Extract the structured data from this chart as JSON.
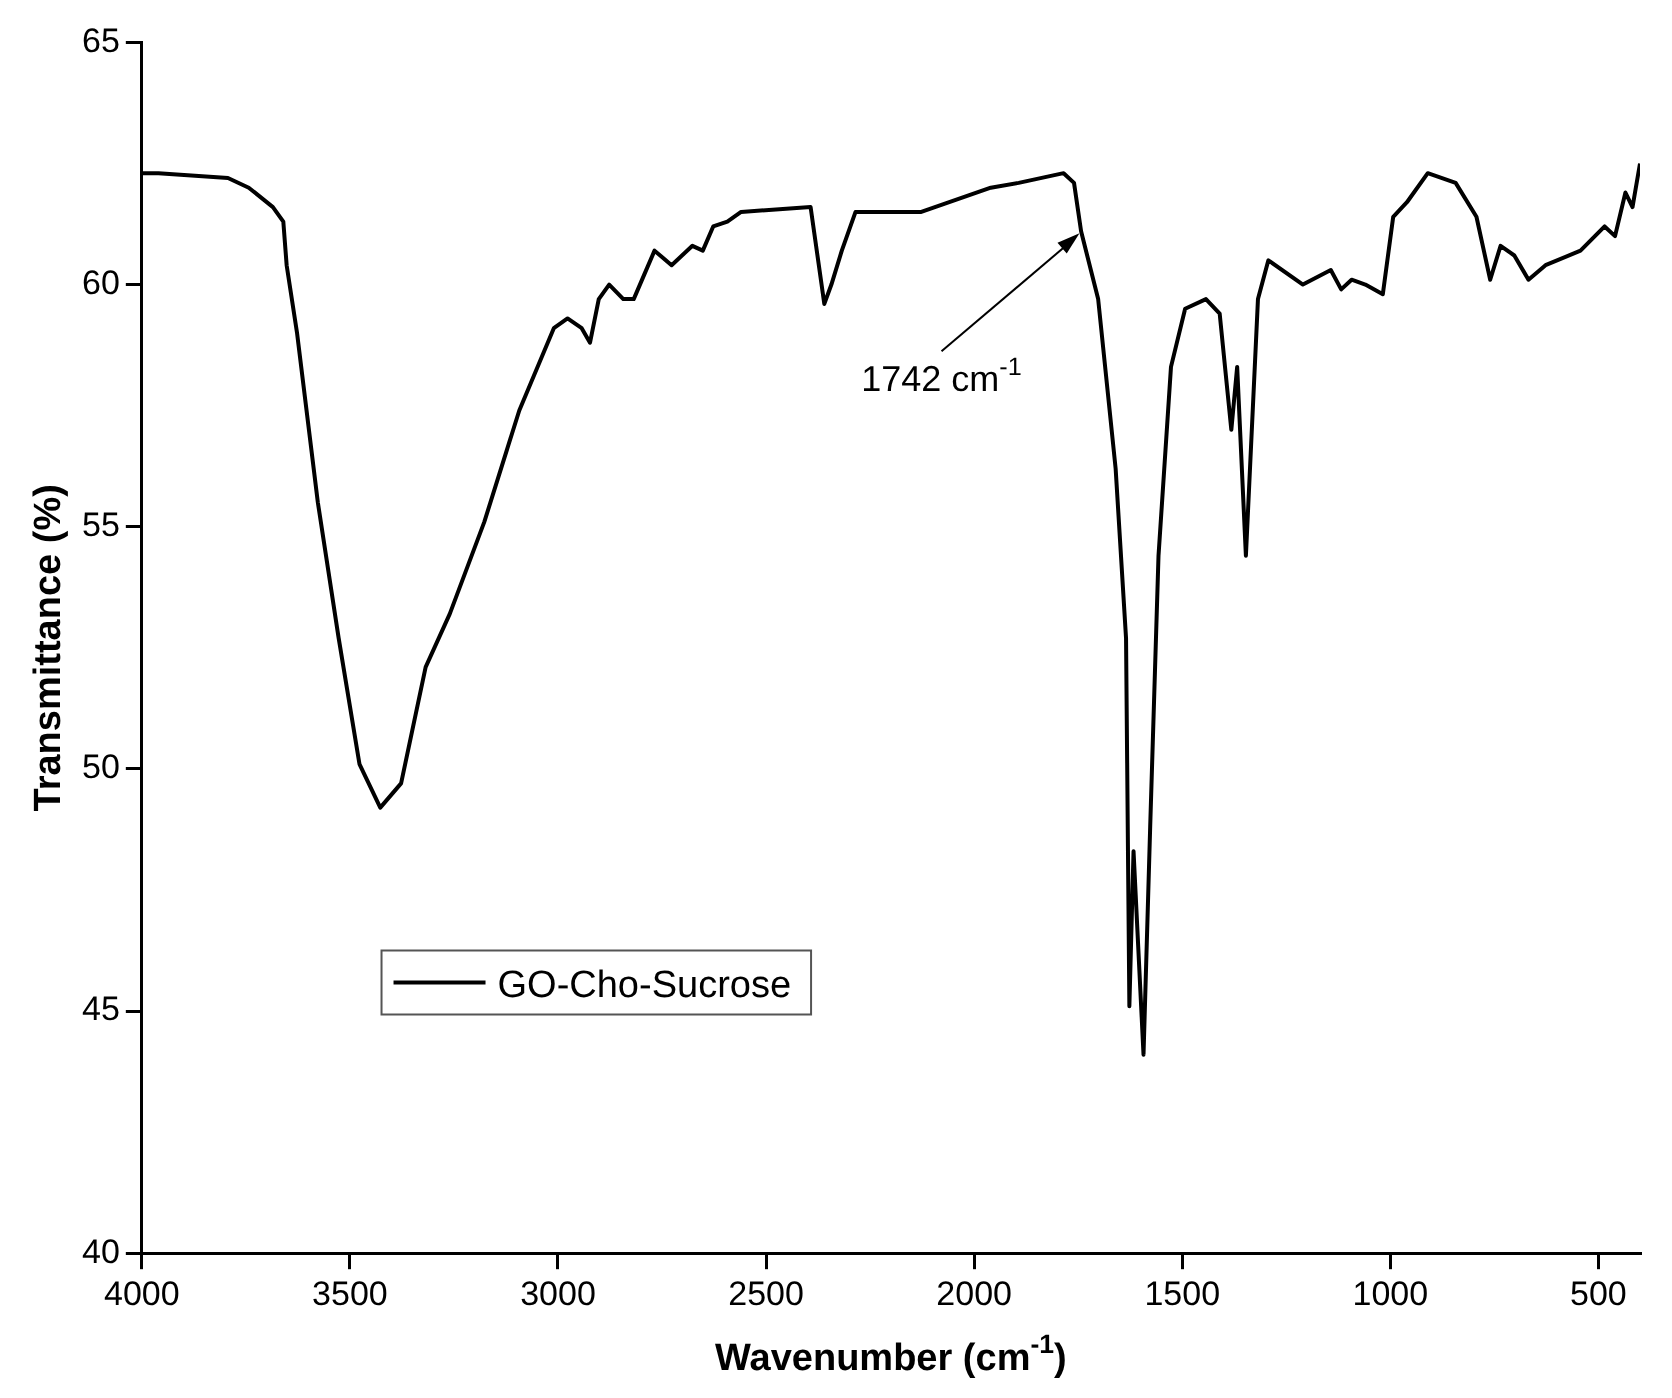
{
  "chart_data": {
    "type": "line",
    "xlabel": "Wavenumber (cm$^{-1}$)",
    "ylabel": "Transmittance (%)",
    "xlim": [
      4000,
      400
    ],
    "ylim": [
      40,
      65
    ],
    "xticks": [
      4000,
      3500,
      3000,
      2500,
      2000,
      1500,
      1000,
      500
    ],
    "yticks": [
      40,
      45,
      50,
      55,
      60,
      65
    ],
    "grid": false,
    "legend": "left",
    "marker": "none",
    "line_style": "solid",
    "annotations": [
      {
        "text": "1742 cm$^{-1}$",
        "x": 1742,
        "y": 61.1
      }
    ],
    "series": [
      {
        "name": "GO-Cho-Sucrose",
        "color": "#000000",
        "x": [
          4000,
          3960,
          3793,
          3743,
          3685,
          3660,
          3652,
          3627,
          3577,
          3527,
          3477,
          3427,
          3377,
          3318,
          3260,
          3177,
          3093,
          3010,
          2977,
          2943,
          2923,
          2902,
          2877,
          2843,
          2818,
          2793,
          2768,
          2727,
          2677,
          2652,
          2627,
          2593,
          2560,
          2393,
          2360,
          2343,
          2318,
          2285,
          2127,
          1960,
          1893,
          1785,
          1760,
          1743,
          1702,
          1660,
          1635,
          1627,
          1617,
          1593,
          1577,
          1557,
          1527,
          1493,
          1443,
          1410,
          1382,
          1368,
          1347,
          1318,
          1293,
          1210,
          1143,
          1118,
          1093,
          1060,
          1018,
          993,
          960,
          910,
          843,
          793,
          760,
          735,
          702,
          668,
          627,
          543,
          485,
          460,
          435,
          418,
          400
        ],
        "values": [
          62.3,
          62.3,
          62.2,
          62.0,
          61.6,
          61.3,
          60.4,
          59.0,
          55.5,
          52.7,
          50.1,
          49.2,
          49.7,
          52.1,
          53.2,
          55.1,
          57.4,
          59.1,
          59.3,
          59.1,
          58.8,
          59.7,
          60.0,
          59.7,
          59.7,
          60.2,
          60.7,
          60.4,
          60.8,
          60.7,
          61.2,
          61.3,
          61.5,
          61.6,
          59.6,
          60.0,
          60.7,
          61.5,
          61.5,
          62.0,
          62.1,
          62.3,
          62.1,
          61.1,
          59.7,
          56.2,
          52.7,
          45.1,
          48.3,
          44.1,
          48.8,
          54.4,
          58.3,
          59.5,
          59.7,
          59.4,
          57.0,
          58.3,
          54.4,
          59.7,
          60.5,
          60.0,
          60.3,
          59.9,
          60.1,
          60.0,
          59.8,
          61.4,
          61.7,
          62.3,
          62.1,
          61.4,
          60.1,
          60.8,
          60.6,
          60.1,
          60.4,
          60.7,
          61.2,
          61.0,
          61.9,
          61.6,
          62.5
        ]
      }
    ]
  }
}
